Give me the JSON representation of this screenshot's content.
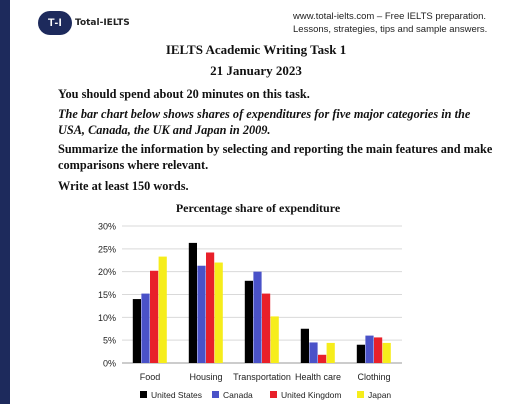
{
  "header": {
    "logo_badge": "T-I",
    "logo_text": "Total-IELTS",
    "line1": "www.total-ielts.com – Free IELTS preparation.",
    "line2": "Lessons, strategies, tips and sample answers."
  },
  "task": {
    "title": "IELTS Academic Writing Task 1",
    "date": "21 January 2023",
    "time_note": "You should spend about 20 minutes on this task.",
    "prompt": "The bar chart below shows shares of expenditures for five major categories in the USA, Canada, the UK and Japan in 2009.",
    "instruction": "Summarize the information by selecting and reporting the main features and make comparisons where relevant.",
    "word_count": "Write at least 150 words."
  },
  "chart_data": {
    "type": "bar",
    "title": "Percentage share of expenditure",
    "categories": [
      "Food",
      "Housing",
      "Transportation",
      "Health care",
      "Clothing"
    ],
    "series": [
      {
        "name": "United States",
        "color": "#000000",
        "values": [
          14,
          26.3,
          18,
          7.5,
          4
        ]
      },
      {
        "name": "Canada",
        "color": "#4a52c8",
        "values": [
          15.2,
          21.3,
          20,
          4.5,
          6
        ]
      },
      {
        "name": "United Kingdom",
        "color": "#e8202a",
        "values": [
          20.2,
          24.2,
          15.2,
          1.8,
          5.6
        ]
      },
      {
        "name": "Japan",
        "color": "#f6ed1b",
        "values": [
          23.3,
          22,
          10.2,
          4.4,
          4.4
        ]
      }
    ],
    "ylim": [
      0,
      30
    ],
    "yticks": [
      "0%",
      "5%",
      "10%",
      "15%",
      "20%",
      "25%",
      "30%"
    ],
    "grid": true,
    "legend_position": "bottom"
  }
}
